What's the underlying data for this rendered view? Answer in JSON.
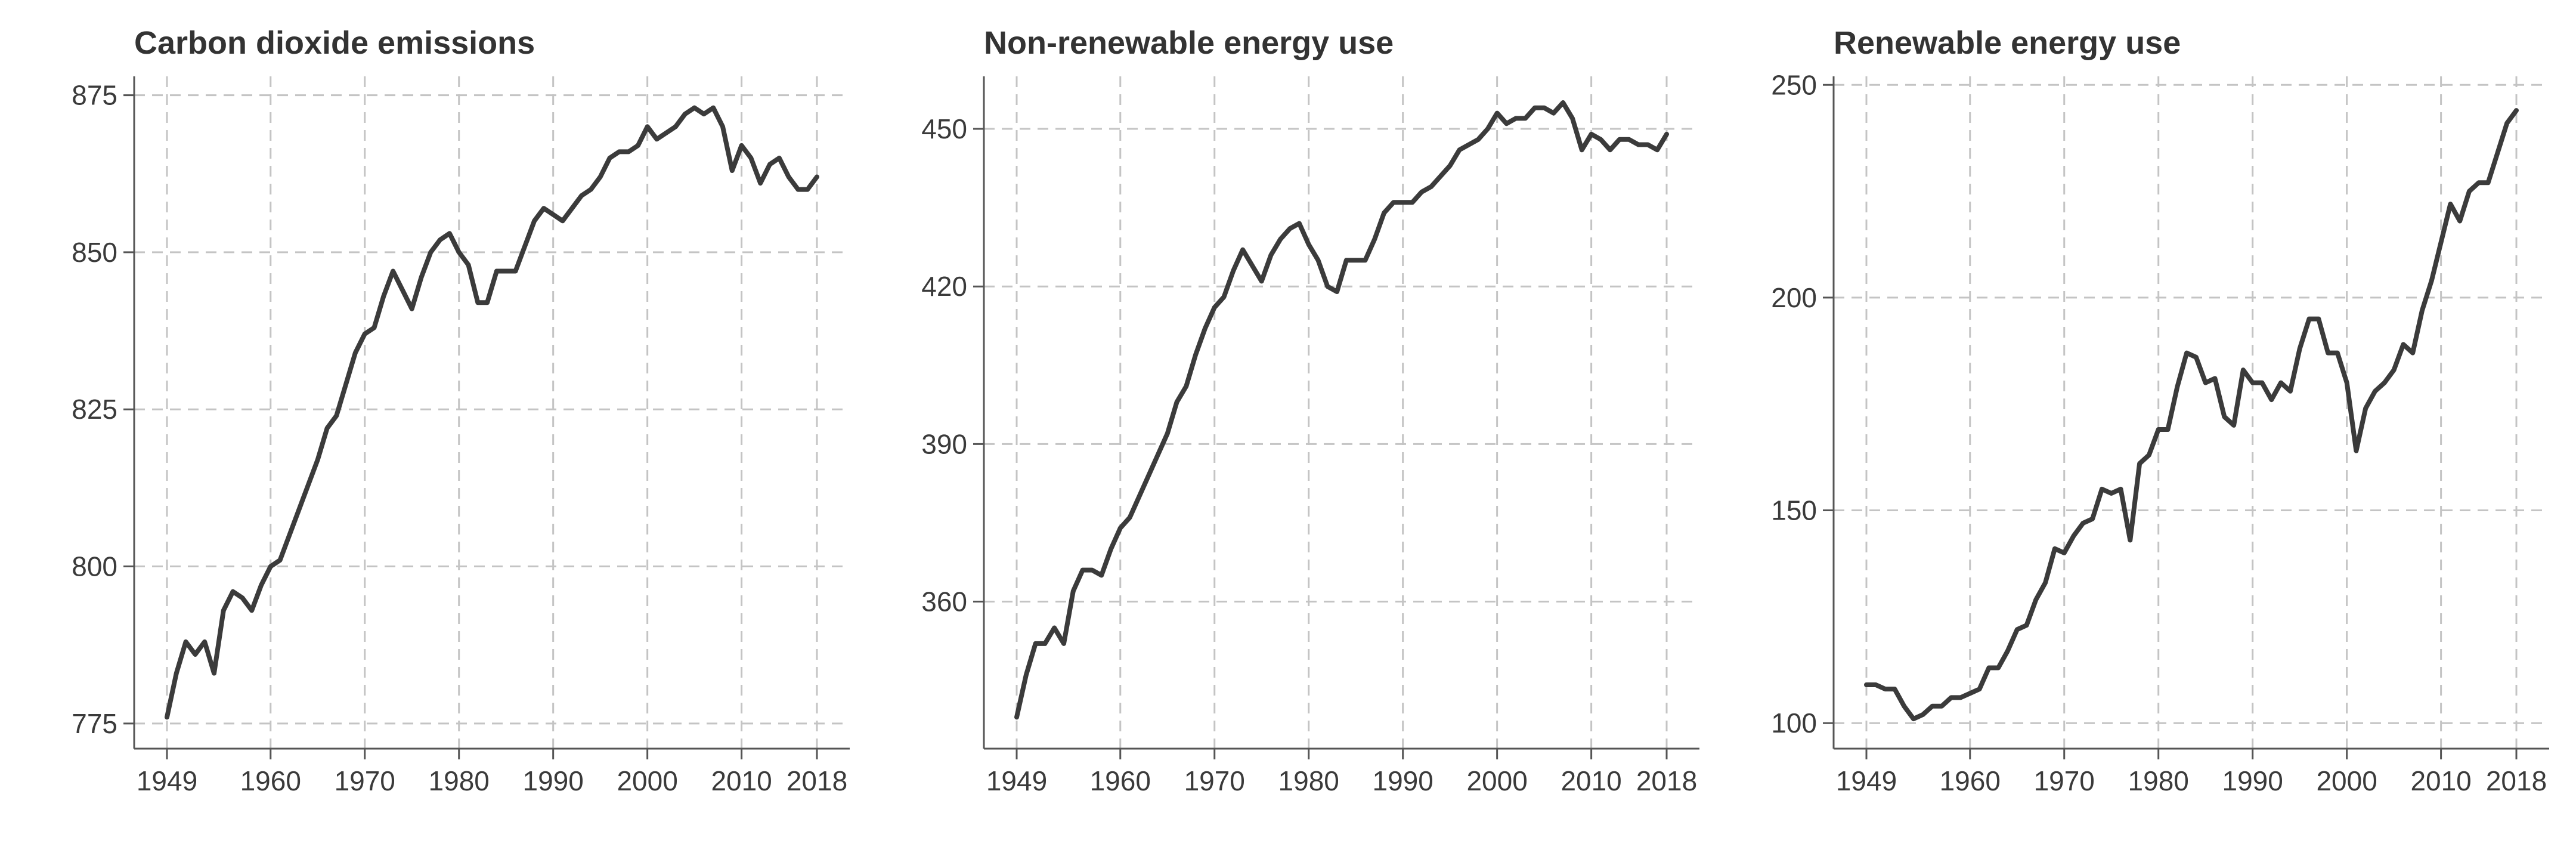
{
  "colors": {
    "line": "#3b3b3b",
    "grid": "#c4c4c4",
    "axis": "#555555",
    "text": "#333333"
  },
  "chart_data": [
    {
      "type": "line",
      "title": "Carbon dioxide emissions",
      "xlabel": "",
      "ylabel": "",
      "xlim": [
        1949,
        2018
      ],
      "ylim": [
        771,
        878
      ],
      "xticks": [
        1949,
        1960,
        1970,
        1980,
        1990,
        2000,
        2010,
        2018
      ],
      "yticks": [
        775,
        800,
        825,
        850,
        875
      ],
      "grid": true,
      "x": [
        1949,
        1950,
        1951,
        1952,
        1953,
        1954,
        1955,
        1956,
        1957,
        1958,
        1959,
        1960,
        1961,
        1962,
        1963,
        1964,
        1965,
        1966,
        1967,
        1968,
        1969,
        1970,
        1971,
        1972,
        1973,
        1974,
        1975,
        1976,
        1977,
        1978,
        1979,
        1980,
        1981,
        1982,
        1983,
        1984,
        1985,
        1986,
        1987,
        1988,
        1989,
        1990,
        1991,
        1992,
        1993,
        1994,
        1995,
        1996,
        1997,
        1998,
        1999,
        2000,
        2001,
        2002,
        2003,
        2004,
        2005,
        2006,
        2007,
        2008,
        2009,
        2010,
        2011,
        2012,
        2013,
        2014,
        2015,
        2016,
        2017,
        2018
      ],
      "series": [
        {
          "values": [
            776,
            783,
            788,
            786,
            788,
            783,
            793,
            796,
            795,
            793,
            797,
            800,
            801,
            805,
            809,
            813,
            817,
            822,
            824,
            829,
            834,
            837,
            838,
            843,
            847,
            844,
            841,
            846,
            850,
            852,
            853,
            850,
            848,
            842,
            842,
            847,
            847,
            847,
            851,
            855,
            857,
            856,
            855,
            857,
            859,
            860,
            862,
            865,
            866,
            866,
            867,
            870,
            868,
            869,
            870,
            872,
            873,
            872,
            873,
            870,
            863,
            867,
            865,
            861,
            864,
            865,
            862,
            860,
            860,
            862
          ]
        }
      ]
    },
    {
      "type": "line",
      "title": "Non-renewable energy use",
      "xlabel": "",
      "ylabel": "",
      "xlim": [
        1949,
        2018
      ],
      "ylim": [
        332,
        460
      ],
      "xticks": [
        1949,
        1960,
        1970,
        1980,
        1990,
        2000,
        2010,
        2018
      ],
      "yticks": [
        360,
        390,
        420,
        450
      ],
      "grid": true,
      "x": [
        1949,
        1950,
        1951,
        1952,
        1953,
        1954,
        1955,
        1956,
        1957,
        1958,
        1959,
        1960,
        1961,
        1962,
        1963,
        1964,
        1965,
        1966,
        1967,
        1968,
        1969,
        1970,
        1971,
        1972,
        1973,
        1974,
        1975,
        1976,
        1977,
        1978,
        1979,
        1980,
        1981,
        1982,
        1983,
        1984,
        1985,
        1986,
        1987,
        1988,
        1989,
        1990,
        1991,
        1992,
        1993,
        1994,
        1995,
        1996,
        1997,
        1998,
        1999,
        2000,
        2001,
        2002,
        2003,
        2004,
        2005,
        2006,
        2007,
        2008,
        2009,
        2010,
        2011,
        2012,
        2013,
        2014,
        2015,
        2016,
        2017,
        2018
      ],
      "series": [
        {
          "values": [
            338,
            346,
            352,
            352,
            355,
            352,
            362,
            366,
            366,
            365,
            370,
            374,
            376,
            380,
            384,
            388,
            392,
            398,
            401,
            407,
            412,
            416,
            418,
            423,
            427,
            424,
            421,
            426,
            429,
            431,
            432,
            428,
            425,
            420,
            419,
            425,
            425,
            425,
            429,
            434,
            436,
            436,
            436,
            438,
            439,
            441,
            443,
            446,
            447,
            448,
            450,
            453,
            451,
            452,
            452,
            454,
            454,
            453,
            455,
            452,
            446,
            449,
            448,
            446,
            448,
            448,
            447,
            447,
            446,
            449
          ]
        }
      ]
    },
    {
      "type": "line",
      "title": "Renewable energy use",
      "xlabel": "",
      "ylabel": "",
      "xlim": [
        1949,
        2018
      ],
      "ylim": [
        94,
        252
      ],
      "xticks": [
        1949,
        1960,
        1970,
        1980,
        1990,
        2000,
        2010,
        2018
      ],
      "yticks": [
        100,
        150,
        200,
        250
      ],
      "grid": true,
      "x": [
        1949,
        1950,
        1951,
        1952,
        1953,
        1954,
        1955,
        1956,
        1957,
        1958,
        1959,
        1960,
        1961,
        1962,
        1963,
        1964,
        1965,
        1966,
        1967,
        1968,
        1969,
        1970,
        1971,
        1972,
        1973,
        1974,
        1975,
        1976,
        1977,
        1978,
        1979,
        1980,
        1981,
        1982,
        1983,
        1984,
        1985,
        1986,
        1987,
        1988,
        1989,
        1990,
        1991,
        1992,
        1993,
        1994,
        1995,
        1996,
        1997,
        1998,
        1999,
        2000,
        2001,
        2002,
        2003,
        2004,
        2005,
        2006,
        2007,
        2008,
        2009,
        2010,
        2011,
        2012,
        2013,
        2014,
        2015,
        2016,
        2017,
        2018
      ],
      "series": [
        {
          "values": [
            109,
            109,
            108,
            108,
            104,
            101,
            102,
            104,
            104,
            106,
            106,
            107,
            108,
            113,
            113,
            117,
            122,
            123,
            129,
            133,
            141,
            140,
            144,
            147,
            148,
            155,
            154,
            155,
            143,
            161,
            163,
            169,
            169,
            179,
            187,
            186,
            180,
            181,
            172,
            170,
            183,
            180,
            180,
            176,
            180,
            178,
            188,
            195,
            195,
            187,
            187,
            180,
            164,
            174,
            178,
            180,
            183,
            189,
            187,
            197,
            204,
            213,
            222,
            218,
            225,
            227,
            227,
            234,
            241,
            244
          ]
        }
      ]
    }
  ]
}
